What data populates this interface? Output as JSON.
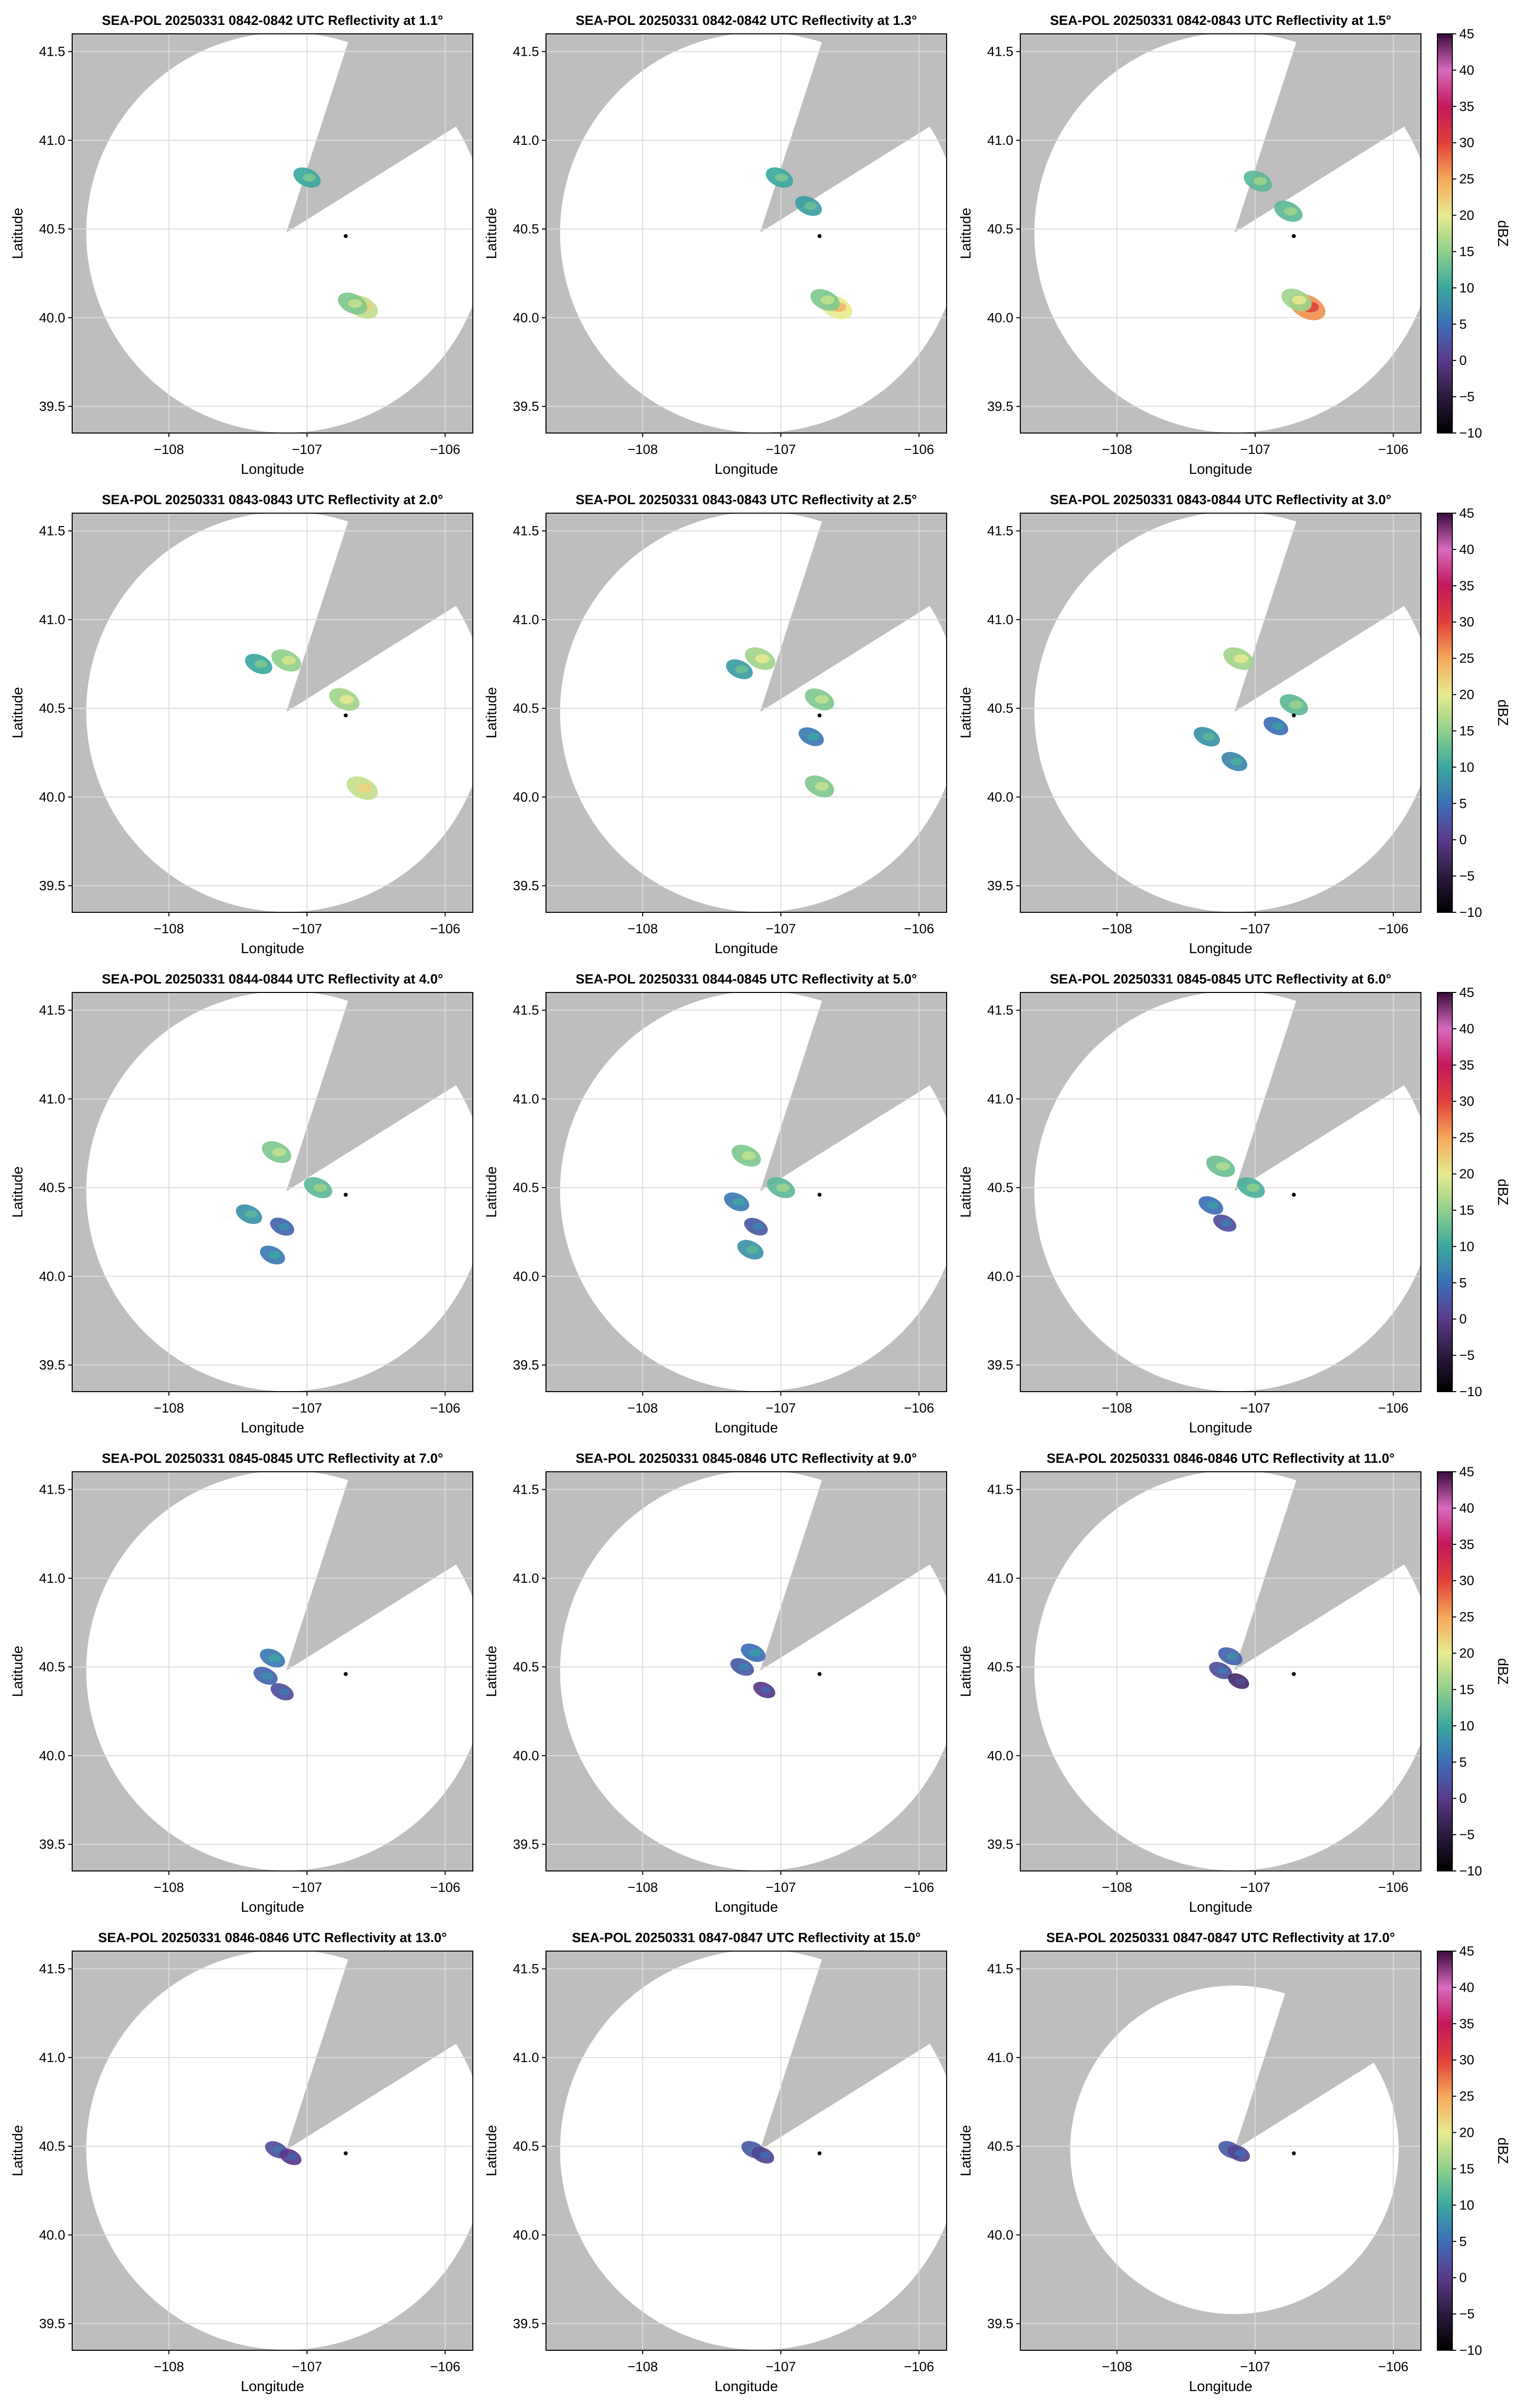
{
  "figure": {
    "background": "#ffffff",
    "blocked_color": "#bebebe",
    "coverage_color": "#ffffff",
    "gridline_color": "#dcdcdc",
    "site_marker_color": "#000000"
  },
  "colorbar": {
    "label": "dBZ",
    "ticks": [
      45,
      40,
      35,
      30,
      25,
      20,
      15,
      10,
      5,
      0,
      -5,
      -10
    ],
    "range": [
      -10,
      45
    ],
    "colormap": "cyclic: black, purple, blue, teal, green, yellow, orange, red, magenta, pink",
    "stops": [
      {
        "value": -10,
        "color": "#000000"
      },
      {
        "value": -5,
        "color": "#2c1a3e"
      },
      {
        "value": 0,
        "color": "#5a3a8a"
      },
      {
        "value": 5,
        "color": "#3d6fb6"
      },
      {
        "value": 10,
        "color": "#3aa8a0"
      },
      {
        "value": 15,
        "color": "#8fd08a"
      },
      {
        "value": 20,
        "color": "#e8ea90"
      },
      {
        "value": 25,
        "color": "#f5a85a"
      },
      {
        "value": 30,
        "color": "#e0403a"
      },
      {
        "value": 35,
        "color": "#c2185b"
      },
      {
        "value": 40,
        "color": "#d86bc0"
      },
      {
        "value": 45,
        "color": "#3a0a3e"
      }
    ]
  },
  "chart_data": [
    {
      "type": "heatmap",
      "title": "SEA-POL 20250331 0842-0842 UTC Reflectivity at 1.1°",
      "xlabel": "Longitude",
      "ylabel": "Latitude",
      "x_ticks": [
        "−108",
        "−107",
        "−106"
      ],
      "y_ticks": [
        "41.5",
        "41.0",
        "40.5",
        "40.0",
        "39.5"
      ],
      "xlim": [
        -108.7,
        -105.8
      ],
      "ylim": [
        39.35,
        41.6
      ],
      "grid": true,
      "radar_center": [
        -107.15,
        40.48
      ],
      "site_marker": [
        -106.72,
        40.46
      ],
      "echoes": [
        {
          "lon": -106.6,
          "lat": 40.06,
          "dbz": 18
        },
        {
          "lon": -106.67,
          "lat": 40.08,
          "dbz": 14
        },
        {
          "lon": -107.0,
          "lat": 40.79,
          "dbz": 10
        }
      ]
    },
    {
      "type": "heatmap",
      "title": "SEA-POL 20250331 0842-0842 UTC Reflectivity at 1.3°",
      "xlabel": "Longitude",
      "ylabel": "Latitude",
      "x_ticks": [
        "−108",
        "−107",
        "−106"
      ],
      "y_ticks": [
        "41.5",
        "41.0",
        "40.5",
        "40.0",
        "39.5"
      ],
      "xlim": [
        -108.7,
        -105.8
      ],
      "ylim": [
        39.35,
        41.6
      ],
      "grid": true,
      "radar_center": [
        -107.15,
        40.48
      ],
      "site_marker": [
        -106.72,
        40.46
      ],
      "echoes": [
        {
          "lon": -106.6,
          "lat": 40.06,
          "dbz": 20
        },
        {
          "lon": -106.68,
          "lat": 40.1,
          "dbz": 14
        },
        {
          "lon": -107.01,
          "lat": 40.79,
          "dbz": 10
        },
        {
          "lon": -106.8,
          "lat": 40.63,
          "dbz": 9
        }
      ]
    },
    {
      "type": "heatmap",
      "title": "SEA-POL 20250331 0842-0843 UTC Reflectivity at 1.5°",
      "xlabel": "Longitude",
      "ylabel": "Latitude",
      "x_ticks": [
        "−108",
        "−107",
        "−106"
      ],
      "y_ticks": [
        "41.5",
        "41.0",
        "40.5",
        "40.0",
        "39.5"
      ],
      "xlim": [
        -108.7,
        -105.8
      ],
      "ylim": [
        39.35,
        41.6
      ],
      "grid": true,
      "radar_center": [
        -107.15,
        40.48
      ],
      "site_marker": [
        -106.72,
        40.46
      ],
      "echoes": [
        {
          "lon": -106.62,
          "lat": 40.06,
          "dbz": 26
        },
        {
          "lon": -106.7,
          "lat": 40.1,
          "dbz": 16
        },
        {
          "lon": -106.98,
          "lat": 40.77,
          "dbz": 12
        },
        {
          "lon": -106.76,
          "lat": 40.6,
          "dbz": 12
        }
      ]
    },
    {
      "type": "heatmap",
      "title": "SEA-POL 20250331 0843-0843 UTC Reflectivity at 2.0°",
      "xlabel": "Longitude",
      "ylabel": "Latitude",
      "x_ticks": [
        "−108",
        "−107",
        "−106"
      ],
      "y_ticks": [
        "41.5",
        "41.0",
        "40.5",
        "40.0",
        "39.5"
      ],
      "xlim": [
        -108.7,
        -105.8
      ],
      "ylim": [
        39.35,
        41.6
      ],
      "grid": true,
      "radar_center": [
        -107.15,
        40.48
      ],
      "site_marker": [
        -106.72,
        40.46
      ],
      "echoes": [
        {
          "lon": -106.6,
          "lat": 40.05,
          "dbz": 18
        },
        {
          "lon": -106.73,
          "lat": 40.55,
          "dbz": 16
        },
        {
          "lon": -107.15,
          "lat": 40.77,
          "dbz": 15
        },
        {
          "lon": -107.35,
          "lat": 40.75,
          "dbz": 10
        }
      ]
    },
    {
      "type": "heatmap",
      "title": "SEA-POL 20250331 0843-0843 UTC Reflectivity at 2.5°",
      "xlabel": "Longitude",
      "ylabel": "Latitude",
      "x_ticks": [
        "−108",
        "−107",
        "−106"
      ],
      "y_ticks": [
        "41.5",
        "41.0",
        "40.5",
        "40.0",
        "39.5"
      ],
      "xlim": [
        -108.7,
        -105.8
      ],
      "ylim": [
        39.35,
        41.6
      ],
      "grid": true,
      "radar_center": [
        -107.15,
        40.48
      ],
      "site_marker": [
        -106.72,
        40.46
      ],
      "echoes": [
        {
          "lon": -106.72,
          "lat": 40.55,
          "dbz": 14
        },
        {
          "lon": -107.15,
          "lat": 40.78,
          "dbz": 16
        },
        {
          "lon": -106.78,
          "lat": 40.34,
          "dbz": 6
        },
        {
          "lon": -106.72,
          "lat": 40.06,
          "dbz": 14
        },
        {
          "lon": -107.3,
          "lat": 40.72,
          "dbz": 9
        }
      ]
    },
    {
      "type": "heatmap",
      "title": "SEA-POL 20250331 0843-0844 UTC Reflectivity at 3.0°",
      "xlabel": "Longitude",
      "ylabel": "Latitude",
      "x_ticks": [
        "−108",
        "−107",
        "−106"
      ],
      "y_ticks": [
        "41.5",
        "41.0",
        "40.5",
        "40.0",
        "39.5"
      ],
      "xlim": [
        -108.7,
        -105.8
      ],
      "ylim": [
        39.35,
        41.6
      ],
      "grid": true,
      "radar_center": [
        -107.15,
        40.48
      ],
      "site_marker": [
        -106.72,
        40.46
      ],
      "echoes": [
        {
          "lon": -106.72,
          "lat": 40.52,
          "dbz": 12
        },
        {
          "lon": -107.12,
          "lat": 40.78,
          "dbz": 16
        },
        {
          "lon": -106.85,
          "lat": 40.4,
          "dbz": 5
        },
        {
          "lon": -107.35,
          "lat": 40.34,
          "dbz": 8
        },
        {
          "lon": -107.15,
          "lat": 40.2,
          "dbz": 7
        }
      ]
    },
    {
      "type": "heatmap",
      "title": "SEA-POL 20250331 0844-0844 UTC Reflectivity at 4.0°",
      "xlabel": "Longitude",
      "ylabel": "Latitude",
      "x_ticks": [
        "−108",
        "−107",
        "−106"
      ],
      "y_ticks": [
        "41.5",
        "41.0",
        "40.5",
        "40.0",
        "39.5"
      ],
      "xlim": [
        -108.7,
        -105.8
      ],
      "ylim": [
        39.35,
        41.6
      ],
      "grid": true,
      "radar_center": [
        -107.15,
        40.48
      ],
      "site_marker": [
        -106.72,
        40.46
      ],
      "echoes": [
        {
          "lon": -106.92,
          "lat": 40.5,
          "dbz": 12
        },
        {
          "lon": -107.22,
          "lat": 40.7,
          "dbz": 14
        },
        {
          "lon": -107.42,
          "lat": 40.35,
          "dbz": 8
        },
        {
          "lon": -107.18,
          "lat": 40.28,
          "dbz": 4
        },
        {
          "lon": -107.25,
          "lat": 40.12,
          "dbz": 6
        }
      ]
    },
    {
      "type": "heatmap",
      "title": "SEA-POL 20250331 0844-0845 UTC Reflectivity at 5.0°",
      "xlabel": "Longitude",
      "ylabel": "Latitude",
      "x_ticks": [
        "−108",
        "−107",
        "−106"
      ],
      "y_ticks": [
        "41.5",
        "41.0",
        "40.5",
        "40.0",
        "39.5"
      ],
      "xlim": [
        -108.7,
        -105.8
      ],
      "ylim": [
        39.35,
        41.6
      ],
      "grid": true,
      "radar_center": [
        -107.15,
        40.48
      ],
      "site_marker": [
        -106.72,
        40.46
      ],
      "echoes": [
        {
          "lon": -107.0,
          "lat": 40.5,
          "dbz": 12
        },
        {
          "lon": -107.25,
          "lat": 40.68,
          "dbz": 14
        },
        {
          "lon": -107.32,
          "lat": 40.42,
          "dbz": 6
        },
        {
          "lon": -107.18,
          "lat": 40.28,
          "dbz": 3
        },
        {
          "lon": -107.22,
          "lat": 40.15,
          "dbz": 8
        }
      ]
    },
    {
      "type": "heatmap",
      "title": "SEA-POL 20250331 0845-0845 UTC Reflectivity at 6.0°",
      "xlabel": "Longitude",
      "ylabel": "Latitude",
      "x_ticks": [
        "−108",
        "−107",
        "−106"
      ],
      "y_ticks": [
        "41.5",
        "41.0",
        "40.5",
        "40.0",
        "39.5"
      ],
      "xlim": [
        -108.7,
        -105.8
      ],
      "ylim": [
        39.35,
        41.6
      ],
      "grid": true,
      "radar_center": [
        -107.15,
        40.48
      ],
      "site_marker": [
        -106.72,
        40.46
      ],
      "echoes": [
        {
          "lon": -107.03,
          "lat": 40.5,
          "dbz": 11
        },
        {
          "lon": -107.25,
          "lat": 40.62,
          "dbz": 13
        },
        {
          "lon": -107.32,
          "lat": 40.4,
          "dbz": 5
        },
        {
          "lon": -107.22,
          "lat": 40.3,
          "dbz": 2
        }
      ]
    },
    {
      "type": "heatmap",
      "title": "SEA-POL 20250331 0845-0845 UTC Reflectivity at 7.0°",
      "xlabel": "Longitude",
      "ylabel": "Latitude",
      "x_ticks": [
        "−108",
        "−107",
        "−106"
      ],
      "y_ticks": [
        "41.5",
        "41.0",
        "40.5",
        "40.0",
        "39.5"
      ],
      "xlim": [
        -108.7,
        -105.8
      ],
      "ylim": [
        39.35,
        41.6
      ],
      "grid": true,
      "radar_center": [
        -107.15,
        40.48
      ],
      "site_marker": [
        -106.72,
        40.46
      ],
      "echoes": [
        {
          "lon": -107.25,
          "lat": 40.55,
          "dbz": 6
        },
        {
          "lon": -107.18,
          "lat": 40.36,
          "dbz": 2
        },
        {
          "lon": -107.3,
          "lat": 40.45,
          "dbz": 4
        }
      ]
    },
    {
      "type": "heatmap",
      "title": "SEA-POL 20250331 0845-0846 UTC Reflectivity at 9.0°",
      "xlabel": "Longitude",
      "ylabel": "Latitude",
      "x_ticks": [
        "−108",
        "−107",
        "−106"
      ],
      "y_ticks": [
        "41.5",
        "41.0",
        "40.5",
        "40.0",
        "39.5"
      ],
      "xlim": [
        -108.7,
        -105.8
      ],
      "ylim": [
        39.35,
        41.6
      ],
      "grid": true,
      "radar_center": [
        -107.15,
        40.48
      ],
      "site_marker": [
        -106.72,
        40.46
      ],
      "echoes": [
        {
          "lon": -107.28,
          "lat": 40.5,
          "dbz": 3
        },
        {
          "lon": -107.12,
          "lat": 40.37,
          "dbz": 0
        },
        {
          "lon": -107.2,
          "lat": 40.58,
          "dbz": 5
        }
      ]
    },
    {
      "type": "heatmap",
      "title": "SEA-POL 20250331 0846-0846 UTC Reflectivity at 11.0°",
      "xlabel": "Longitude",
      "ylabel": "Latitude",
      "x_ticks": [
        "−108",
        "−107",
        "−106"
      ],
      "y_ticks": [
        "41.5",
        "41.0",
        "40.5",
        "40.0",
        "39.5"
      ],
      "xlim": [
        -108.7,
        -105.8
      ],
      "ylim": [
        39.35,
        41.6
      ],
      "grid": true,
      "radar_center": [
        -107.15,
        40.48
      ],
      "site_marker": [
        -106.72,
        40.46
      ],
      "echoes": [
        {
          "lon": -107.25,
          "lat": 40.48,
          "dbz": 2
        },
        {
          "lon": -107.12,
          "lat": 40.42,
          "dbz": -2
        },
        {
          "lon": -107.18,
          "lat": 40.56,
          "dbz": 4
        }
      ]
    },
    {
      "type": "heatmap",
      "title": "SEA-POL 20250331 0846-0846 UTC Reflectivity at 13.0°",
      "xlabel": "Longitude",
      "ylabel": "Latitude",
      "x_ticks": [
        "−108",
        "−107",
        "−106"
      ],
      "y_ticks": [
        "41.5",
        "41.0",
        "40.5",
        "40.0",
        "39.5"
      ],
      "xlim": [
        -108.7,
        -105.8
      ],
      "ylim": [
        39.35,
        41.6
      ],
      "grid": true,
      "radar_center": [
        -107.15,
        40.48
      ],
      "site_marker": [
        -106.72,
        40.46
      ],
      "echoes": [
        {
          "lon": -107.22,
          "lat": 40.48,
          "dbz": 2
        },
        {
          "lon": -107.12,
          "lat": 40.44,
          "dbz": 0
        }
      ]
    },
    {
      "type": "heatmap",
      "title": "SEA-POL 20250331 0847-0847 UTC Reflectivity at 15.0°",
      "xlabel": "Longitude",
      "ylabel": "Latitude",
      "x_ticks": [
        "−108",
        "−107",
        "−106"
      ],
      "y_ticks": [
        "41.5",
        "41.0",
        "40.5",
        "40.0",
        "39.5"
      ],
      "xlim": [
        -108.7,
        -105.8
      ],
      "ylim": [
        39.35,
        41.6
      ],
      "grid": true,
      "radar_center": [
        -107.15,
        40.48
      ],
      "site_marker": [
        -106.72,
        40.46
      ],
      "echoes": [
        {
          "lon": -107.2,
          "lat": 40.48,
          "dbz": 3
        },
        {
          "lon": -107.13,
          "lat": 40.45,
          "dbz": 1
        }
      ]
    },
    {
      "type": "heatmap",
      "title": "SEA-POL 20250331 0847-0847 UTC Reflectivity at 17.0°",
      "xlabel": "Longitude",
      "ylabel": "Latitude",
      "x_ticks": [
        "−108",
        "−107",
        "−106"
      ],
      "y_ticks": [
        "41.5",
        "41.0",
        "40.5",
        "40.0",
        "39.5"
      ],
      "xlim": [
        -108.7,
        -105.8
      ],
      "ylim": [
        39.35,
        41.6
      ],
      "grid": true,
      "radar_center": [
        -107.15,
        40.48
      ],
      "site_marker": [
        -106.72,
        40.46
      ],
      "echoes": [
        {
          "lon": -107.18,
          "lat": 40.48,
          "dbz": 3
        },
        {
          "lon": -107.12,
          "lat": 40.46,
          "dbz": 1
        }
      ]
    }
  ]
}
